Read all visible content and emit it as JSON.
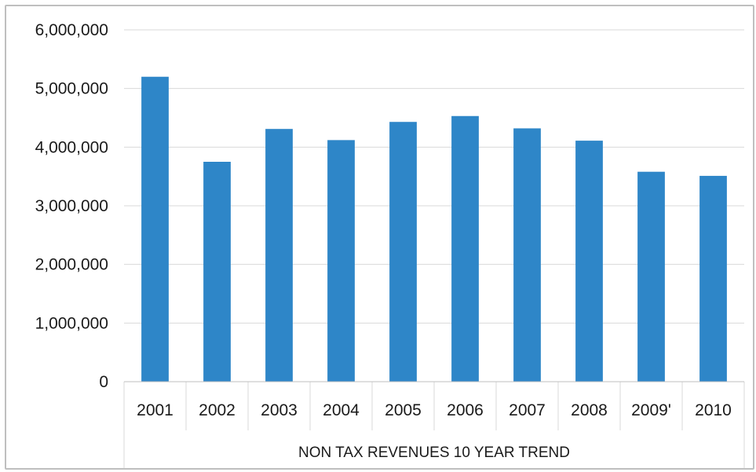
{
  "chart_data": {
    "type": "bar",
    "categories": [
      "2001",
      "2002",
      "2003",
      "2004",
      "2005",
      "2006",
      "2007",
      "2008",
      "2009'",
      "2010"
    ],
    "values": [
      5200000,
      3750000,
      4310000,
      4120000,
      4430000,
      4530000,
      4320000,
      4110000,
      3580000,
      3510000
    ],
    "title": "",
    "xlabel": "NON TAX REVENUES 10 YEAR TREND",
    "ylabel": "",
    "ylim": [
      0,
      6000000
    ],
    "yticks": [
      "0",
      "1,000,000",
      "2,000,000",
      "3,000,000",
      "4,000,000",
      "5,000,000",
      "6,000,000"
    ],
    "grid": true,
    "bar_color": "#2e86c8"
  }
}
